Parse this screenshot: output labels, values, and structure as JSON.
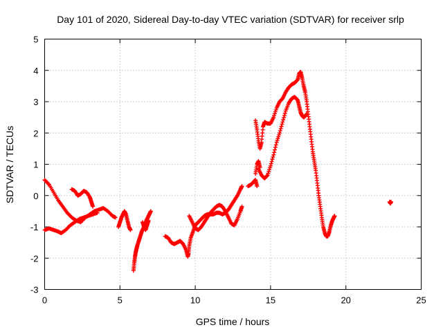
{
  "chart_data": {
    "type": "scatter",
    "title": "Day 101 of 2020, Sidereal Day-to-day VTEC variation (SDTVAR) for receiver srlp",
    "xlabel": "GPS time / hours",
    "ylabel": "SDTVAR / TECUs",
    "xlim": [
      0,
      25
    ],
    "ylim": [
      -3,
      5
    ],
    "xticks": [
      "0",
      "5",
      "10",
      "15",
      "20",
      "25"
    ],
    "yticks": [
      "-3",
      "-2",
      "-1",
      "0",
      "1",
      "2",
      "3",
      "4",
      "5"
    ],
    "grid": true,
    "marker": "+",
    "color": "#ff0000",
    "series": [
      {
        "name": "SDTVAR",
        "segments": [
          [
            [
              0.0,
              0.5
            ],
            [
              0.3,
              0.35
            ],
            [
              0.6,
              0.1
            ],
            [
              0.9,
              -0.15
            ],
            [
              1.2,
              -0.35
            ],
            [
              1.5,
              -0.55
            ],
            [
              1.8,
              -0.7
            ],
            [
              2.1,
              -0.8
            ],
            [
              2.4,
              -0.85
            ],
            [
              2.7,
              -0.7
            ],
            [
              3.0,
              -0.6
            ],
            [
              3.3,
              -0.5
            ],
            [
              3.6,
              -0.45
            ],
            [
              3.9,
              -0.4
            ],
            [
              4.2,
              -0.5
            ],
            [
              4.5,
              -0.65
            ],
            [
              4.7,
              -0.7
            ]
          ],
          [
            [
              0.0,
              -1.1
            ],
            [
              0.3,
              -1.05
            ],
            [
              0.6,
              -1.1
            ],
            [
              0.9,
              -1.15
            ],
            [
              1.1,
              -1.2
            ],
            [
              1.4,
              -1.1
            ],
            [
              1.7,
              -0.95
            ],
            [
              2.0,
              -0.85
            ],
            [
              2.3,
              -0.75
            ],
            [
              2.6,
              -0.7
            ],
            [
              2.9,
              -0.65
            ],
            [
              3.2,
              -0.6
            ],
            [
              3.5,
              -0.55
            ]
          ],
          [
            [
              1.8,
              0.2
            ],
            [
              2.0,
              0.15
            ],
            [
              2.2,
              0.0
            ],
            [
              2.4,
              0.05
            ],
            [
              2.6,
              0.15
            ],
            [
              2.8,
              0.1
            ],
            [
              3.0,
              -0.05
            ],
            [
              3.1,
              -0.2
            ],
            [
              3.2,
              -0.35
            ]
          ],
          [
            [
              4.9,
              -1.0
            ],
            [
              5.0,
              -0.85
            ],
            [
              5.1,
              -0.7
            ],
            [
              5.2,
              -0.6
            ],
            [
              5.3,
              -0.5
            ],
            [
              5.4,
              -0.6
            ],
            [
              5.5,
              -0.8
            ],
            [
              5.6,
              -1.0
            ],
            [
              5.7,
              -1.1
            ]
          ],
          [
            [
              5.9,
              -2.4
            ],
            [
              5.95,
              -2.15
            ],
            [
              6.0,
              -1.95
            ],
            [
              6.05,
              -1.8
            ],
            [
              6.1,
              -1.7
            ],
            [
              6.15,
              -1.6
            ],
            [
              6.25,
              -1.45
            ],
            [
              6.35,
              -1.3
            ],
            [
              6.45,
              -1.15
            ],
            [
              6.55,
              -1.05
            ],
            [
              6.65,
              -0.95
            ],
            [
              6.75,
              -0.8
            ],
            [
              6.85,
              -0.7
            ],
            [
              6.95,
              -0.6
            ],
            [
              7.05,
              -0.5
            ]
          ],
          [
            [
              6.5,
              -0.85
            ],
            [
              6.6,
              -1.0
            ],
            [
              6.7,
              -1.1
            ],
            [
              6.8,
              -0.95
            ],
            [
              6.9,
              -0.8
            ]
          ],
          [
            [
              8.0,
              -1.3
            ],
            [
              8.2,
              -1.35
            ],
            [
              8.4,
              -1.5
            ],
            [
              8.6,
              -1.55
            ],
            [
              8.8,
              -1.5
            ],
            [
              9.0,
              -1.45
            ],
            [
              9.2,
              -1.55
            ],
            [
              9.4,
              -1.75
            ],
            [
              9.5,
              -1.95
            ],
            [
              9.55,
              -1.85
            ],
            [
              9.6,
              -1.6
            ],
            [
              9.7,
              -1.35
            ],
            [
              9.85,
              -1.15
            ],
            [
              10.0,
              -0.95
            ],
            [
              10.2,
              -0.85
            ],
            [
              10.4,
              -0.75
            ],
            [
              10.6,
              -0.65
            ],
            [
              10.8,
              -0.6
            ],
            [
              11.0,
              -0.6
            ],
            [
              11.2,
              -0.6
            ],
            [
              11.4,
              -0.55
            ],
            [
              11.6,
              -0.55
            ],
            [
              11.8,
              -0.6
            ],
            [
              12.0,
              -0.55
            ],
            [
              12.2,
              -0.45
            ],
            [
              12.4,
              -0.3
            ],
            [
              12.6,
              -0.15
            ],
            [
              12.8,
              0.0
            ],
            [
              13.0,
              0.2
            ],
            [
              13.1,
              0.3
            ]
          ],
          [
            [
              9.6,
              -0.65
            ],
            [
              9.8,
              -0.85
            ],
            [
              10.0,
              -1.05
            ],
            [
              10.2,
              -1.1
            ],
            [
              10.4,
              -1.0
            ],
            [
              10.6,
              -0.85
            ],
            [
              10.8,
              -0.7
            ],
            [
              11.0,
              -0.55
            ],
            [
              11.2,
              -0.45
            ],
            [
              11.4,
              -0.35
            ],
            [
              11.6,
              -0.3
            ],
            [
              11.8,
              -0.35
            ],
            [
              12.0,
              -0.5
            ],
            [
              12.2,
              -0.7
            ],
            [
              12.4,
              -0.9
            ],
            [
              12.6,
              -0.95
            ],
            [
              12.8,
              -0.75
            ],
            [
              13.0,
              -0.5
            ],
            [
              13.1,
              -0.35
            ]
          ],
          [
            [
              13.5,
              0.3
            ],
            [
              13.7,
              0.35
            ],
            [
              13.9,
              0.45
            ],
            [
              14.0,
              0.5
            ],
            [
              14.1,
              0.3
            ]
          ],
          [
            [
              14.0,
              0.7
            ],
            [
              14.1,
              1.0
            ],
            [
              14.2,
              1.1
            ],
            [
              14.3,
              0.9
            ]
          ],
          [
            [
              14.0,
              2.4
            ],
            [
              14.1,
              2.1
            ],
            [
              14.2,
              1.75
            ],
            [
              14.3,
              1.5
            ],
            [
              14.4,
              1.7
            ],
            [
              14.5,
              2.2
            ],
            [
              14.6,
              2.35
            ],
            [
              14.8,
              2.3
            ],
            [
              15.0,
              2.3
            ],
            [
              15.2,
              2.5
            ],
            [
              15.4,
              2.8
            ],
            [
              15.6,
              3.0
            ],
            [
              15.8,
              3.1
            ],
            [
              16.0,
              3.3
            ],
            [
              16.2,
              3.45
            ],
            [
              16.4,
              3.55
            ],
            [
              16.6,
              3.6
            ],
            [
              16.8,
              3.7
            ],
            [
              16.9,
              3.9
            ],
            [
              17.0,
              3.95
            ],
            [
              17.1,
              3.75
            ],
            [
              17.2,
              3.5
            ],
            [
              17.3,
              3.3
            ],
            [
              17.4,
              3.0
            ],
            [
              17.5,
              2.6
            ],
            [
              17.6,
              2.2
            ],
            [
              17.7,
              1.8
            ],
            [
              17.8,
              1.4
            ],
            [
              17.9,
              1.1
            ],
            [
              18.0,
              0.8
            ],
            [
              18.1,
              0.4
            ],
            [
              18.2,
              0.0
            ],
            [
              18.3,
              -0.35
            ],
            [
              18.4,
              -0.7
            ],
            [
              18.5,
              -1.0
            ],
            [
              18.6,
              -1.2
            ],
            [
              18.7,
              -1.3
            ],
            [
              18.8,
              -1.3
            ],
            [
              18.9,
              -1.15
            ],
            [
              19.0,
              -0.95
            ],
            [
              19.1,
              -0.8
            ],
            [
              19.2,
              -0.7
            ],
            [
              19.25,
              -0.65
            ]
          ],
          [
            [
              14.2,
              0.85
            ],
            [
              14.4,
              0.65
            ],
            [
              14.6,
              0.55
            ],
            [
              14.8,
              0.65
            ],
            [
              15.0,
              0.95
            ],
            [
              15.2,
              1.3
            ],
            [
              15.4,
              1.7
            ],
            [
              15.6,
              2.0
            ],
            [
              15.8,
              2.35
            ],
            [
              16.0,
              2.7
            ],
            [
              16.2,
              2.95
            ],
            [
              16.4,
              3.1
            ],
            [
              16.6,
              3.15
            ],
            [
              16.8,
              3.05
            ],
            [
              16.9,
              2.85
            ],
            [
              17.0,
              2.65
            ],
            [
              17.1,
              2.55
            ],
            [
              17.2,
              2.5
            ],
            [
              17.3,
              2.55
            ],
            [
              17.4,
              2.6
            ]
          ],
          [
            [
              22.9,
              -0.2
            ],
            [
              22.95,
              -0.25
            ],
            [
              23.0,
              -0.2
            ]
          ]
        ]
      }
    ]
  }
}
